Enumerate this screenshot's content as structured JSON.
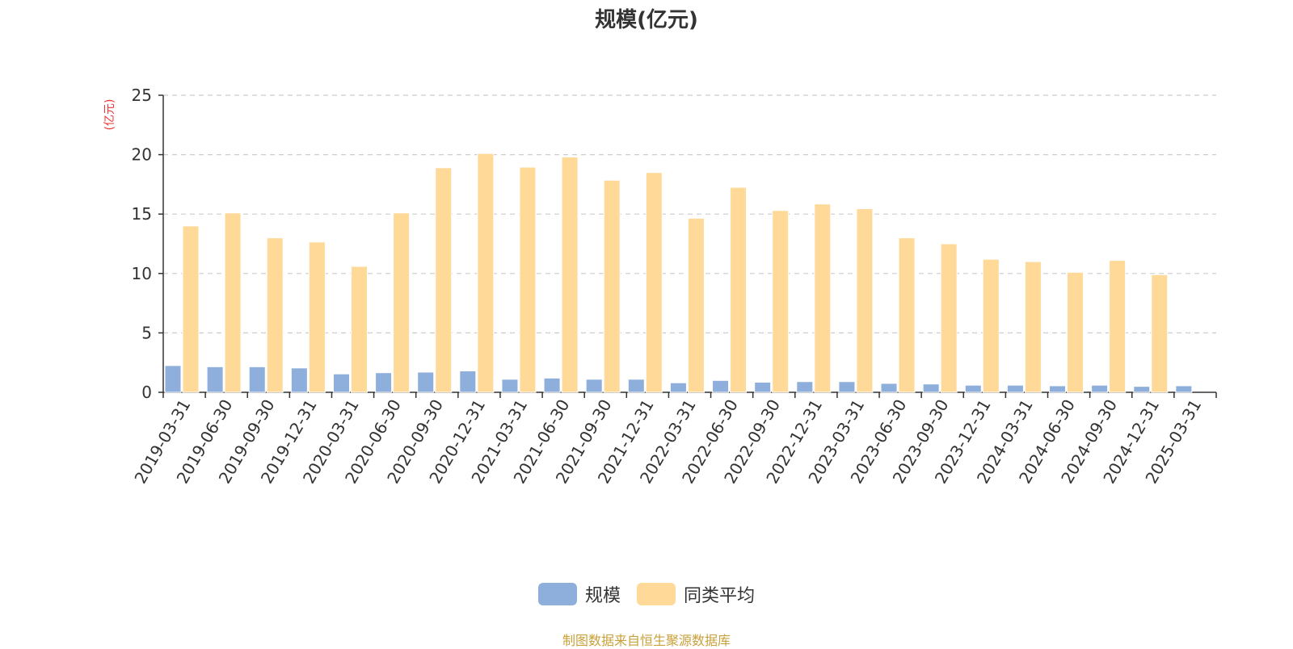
{
  "chart_data": {
    "type": "bar",
    "title": "规模(亿元)",
    "ylabel": "(亿元)",
    "xlabel": "",
    "ylim": [
      0,
      25
    ],
    "yticks": [
      0,
      5,
      10,
      15,
      20,
      25
    ],
    "grid": true,
    "legend_position": "bottom",
    "categories": [
      "2019-03-31",
      "2019-06-30",
      "2019-09-30",
      "2019-12-31",
      "2020-03-31",
      "2020-06-30",
      "2020-09-30",
      "2020-12-31",
      "2021-03-31",
      "2021-06-30",
      "2021-09-30",
      "2021-12-31",
      "2022-03-31",
      "2022-06-30",
      "2022-09-30",
      "2022-12-31",
      "2023-03-31",
      "2023-06-30",
      "2023-09-30",
      "2023-12-31",
      "2024-03-31",
      "2024-06-30",
      "2024-09-30",
      "2024-12-31",
      "2025-03-31"
    ],
    "series": [
      {
        "name": "规模",
        "color": "#8eaedb",
        "values": [
          2.25,
          2.15,
          2.15,
          2.05,
          1.55,
          1.65,
          1.7,
          1.8,
          1.1,
          1.2,
          1.1,
          1.1,
          0.8,
          1.0,
          0.85,
          0.9,
          0.9,
          0.75,
          0.7,
          0.6,
          0.6,
          0.55,
          0.6,
          0.5,
          0.55
        ]
      },
      {
        "name": "同类平均",
        "color": "#fed998",
        "values": [
          14.0,
          15.1,
          13.0,
          12.65,
          10.6,
          15.1,
          18.9,
          20.1,
          18.95,
          19.8,
          17.85,
          18.5,
          14.65,
          17.25,
          15.3,
          15.85,
          15.45,
          13.0,
          12.5,
          11.2,
          11.0,
          10.1,
          11.1,
          9.9,
          null
        ]
      }
    ]
  },
  "legend": {
    "items": [
      {
        "label": "规模",
        "color": "#8eaedb"
      },
      {
        "label": "同类平均",
        "color": "#fed998"
      }
    ]
  },
  "footer": {
    "source": "制图数据来自恒生聚源数据库"
  }
}
